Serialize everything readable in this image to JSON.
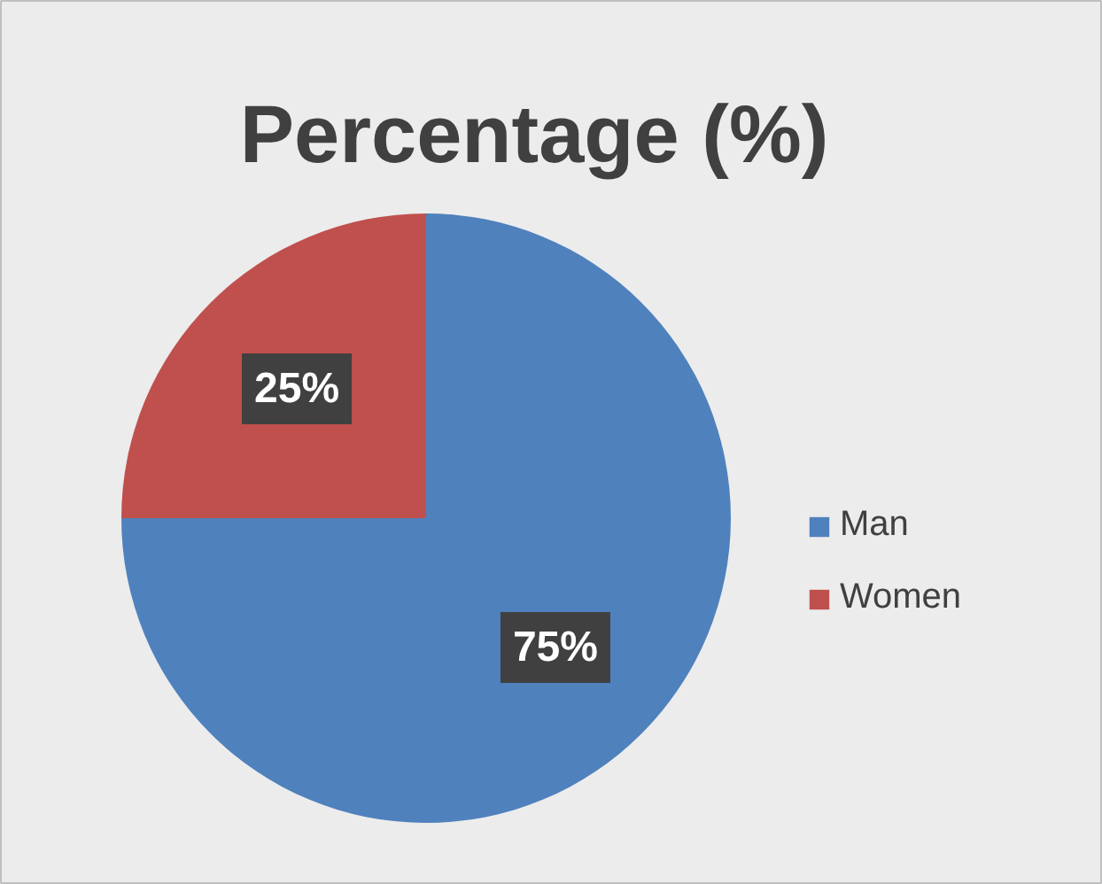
{
  "chart_data": {
    "type": "pie",
    "title": "Percentage (%)",
    "categories": [
      "Man",
      "Women"
    ],
    "values": [
      75,
      25
    ],
    "colors": [
      "#4f81bd",
      "#c0504d"
    ],
    "value_labels": [
      "75%",
      "25%"
    ],
    "legend": "right"
  }
}
